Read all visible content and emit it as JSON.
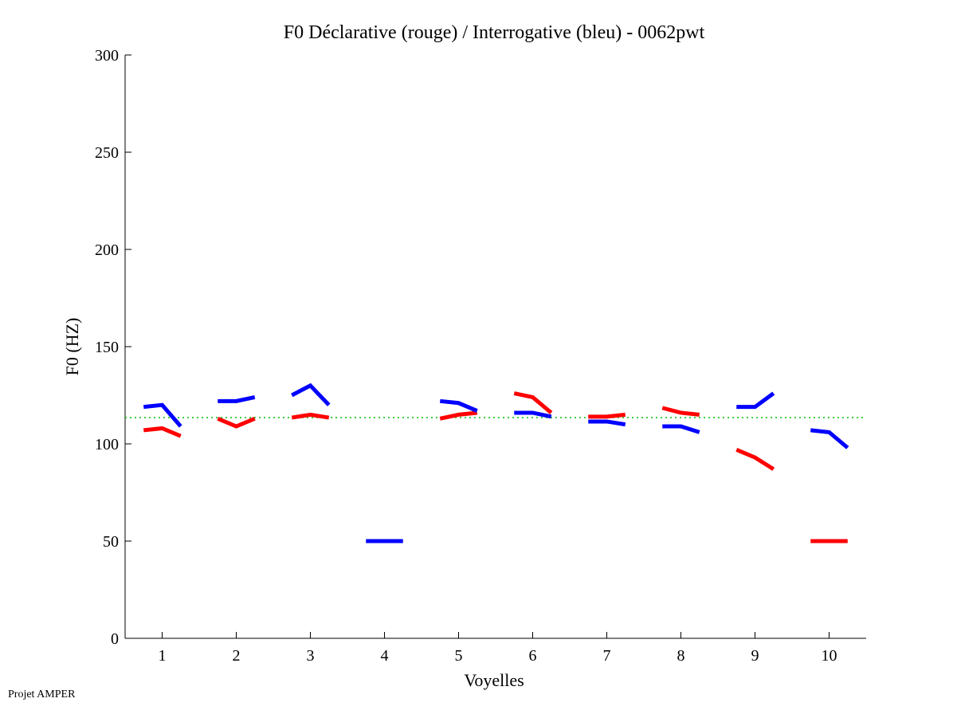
{
  "chart_data": {
    "type": "line",
    "title": "F0 Déclarative (rouge) / Interrogative (bleu) - 0062pwt",
    "xlabel": "Voyelles",
    "ylabel": "F0 (HZ)",
    "xlim": [
      0.5,
      10.5
    ],
    "ylim": [
      0,
      300
    ],
    "xticks": [
      "1",
      "2",
      "3",
      "4",
      "5",
      "6",
      "7",
      "8",
      "9",
      "10"
    ],
    "yticks": [
      "0",
      "50",
      "100",
      "150",
      "200",
      "250",
      "300"
    ],
    "reference_line": {
      "value": 113.5,
      "color": "#00c000"
    },
    "series": [
      {
        "name": "Déclarative",
        "color": "#ff0000",
        "segments": [
          [
            107,
            108,
            104
          ],
          [
            113,
            109,
            113
          ],
          [
            113.5,
            115,
            113.5
          ],
          null,
          [
            113,
            115,
            116
          ],
          [
            126,
            124,
            116
          ],
          [
            114,
            114,
            115
          ],
          [
            118.5,
            116,
            115
          ],
          [
            97,
            93,
            87
          ],
          [
            50,
            50,
            50
          ]
        ]
      },
      {
        "name": "Interrogative",
        "color": "#0000ff",
        "segments": [
          [
            119,
            120,
            109
          ],
          [
            122,
            122,
            124
          ],
          [
            125,
            130,
            120
          ],
          [
            50,
            50,
            50
          ],
          [
            122,
            121,
            117
          ],
          [
            116,
            116,
            114
          ],
          [
            111.5,
            111.5,
            110
          ],
          [
            109,
            109,
            106
          ],
          [
            119,
            119,
            126
          ],
          [
            107,
            106,
            98
          ]
        ]
      }
    ]
  },
  "footer": "Projet AMPER"
}
